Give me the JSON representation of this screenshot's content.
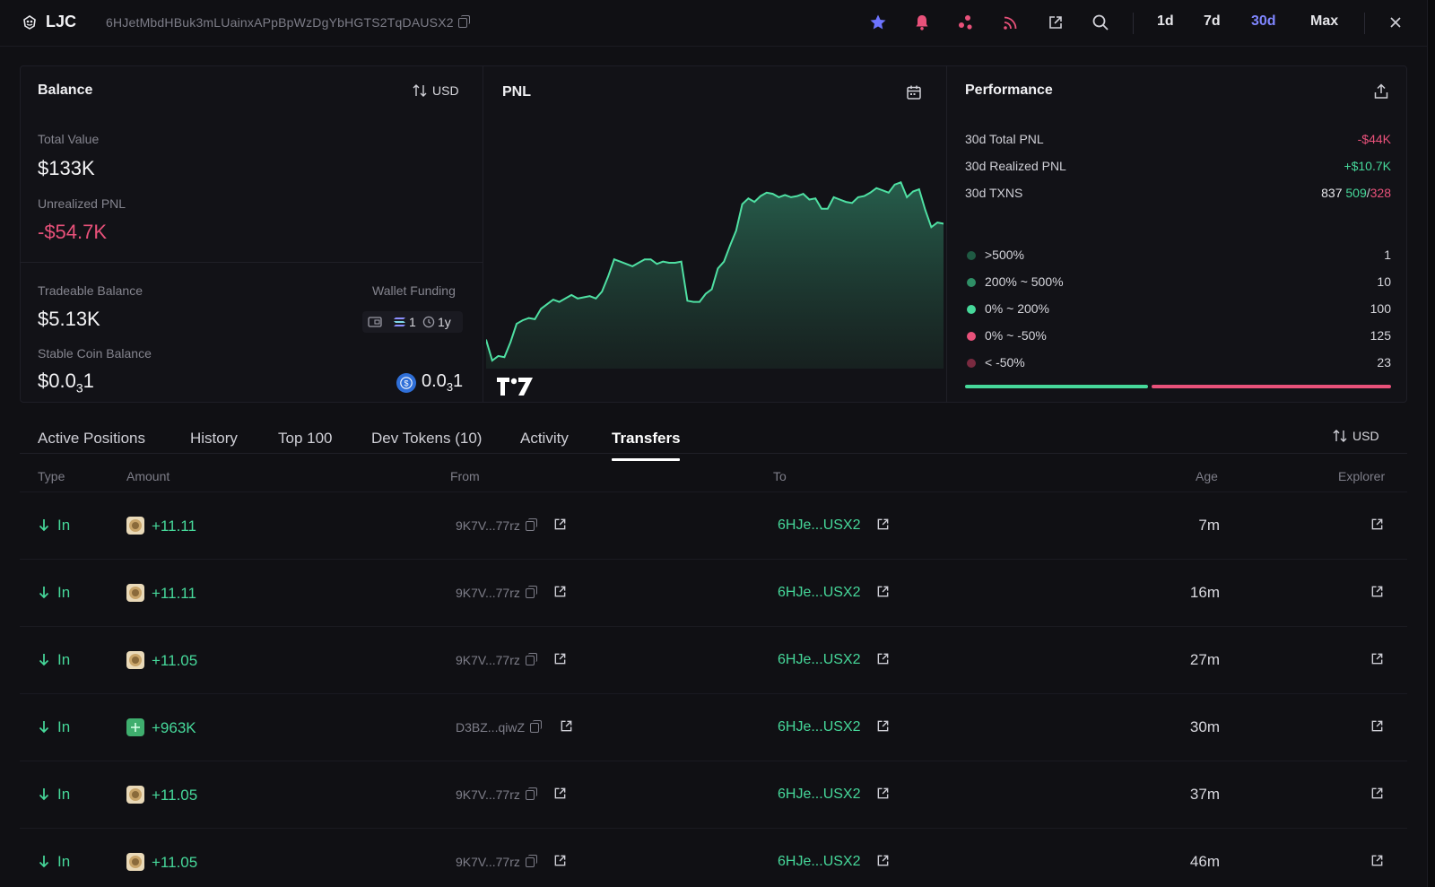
{
  "header": {
    "token_name": "LJC",
    "address": "6HJetMbdHBuk3mLUainxAPpBpWzDgYbHGTS2TqDAUSX2",
    "ranges": [
      "1d",
      "7d",
      "30d",
      "Max"
    ],
    "active_range": "30d"
  },
  "balance": {
    "title": "Balance",
    "currency": "USD",
    "total_value_label": "Total Value",
    "total_value": "$133K",
    "unrealized_label": "Unrealized PNL",
    "unrealized_value": "-$54.7K",
    "tradeable_label": "Tradeable Balance",
    "tradeable_value": "$5.13K",
    "wallet_funding_label": "Wallet Funding",
    "funding_count": "1",
    "funding_age": "1y",
    "stable_label": "Stable Coin Balance",
    "stable_value_main": "$0.0",
    "stable_value_sub": "3",
    "stable_value_tail": "1",
    "stable_right_main": "0.0",
    "stable_right_sub": "3",
    "stable_right_tail": "1"
  },
  "pnl": {
    "title": "PNL"
  },
  "chart_data": {
    "type": "area",
    "title": "PNL",
    "xlabel": "",
    "ylabel": "",
    "grid": false,
    "color": "#4fe0a3",
    "x": [
      0,
      1,
      2,
      3,
      4,
      5,
      6,
      7,
      8,
      9,
      10,
      11,
      12,
      13,
      14,
      15,
      16,
      17,
      18,
      19,
      20,
      21,
      22,
      23,
      24,
      25,
      26,
      27,
      28,
      29,
      30,
      31,
      32,
      33,
      34,
      35,
      36,
      37,
      38,
      39,
      40,
      41,
      42,
      43,
      44,
      45,
      46,
      47,
      48,
      49,
      50,
      51,
      52,
      53,
      54,
      55,
      56,
      57,
      58,
      59,
      60,
      61,
      62,
      63,
      64,
      65,
      66,
      67,
      68,
      69,
      70,
      71,
      72,
      73,
      74,
      75
    ],
    "values": [
      0,
      -18,
      -14,
      -15,
      -2,
      14,
      17,
      19,
      18,
      27,
      31,
      35,
      33,
      36,
      39,
      36,
      37,
      38,
      36,
      42,
      55,
      70,
      68,
      66,
      64,
      67,
      70,
      70,
      66,
      68,
      67,
      67,
      68,
      34,
      33,
      33,
      40,
      44,
      62,
      68,
      82,
      95,
      118,
      123,
      120,
      125,
      128,
      127,
      124,
      126,
      124,
      125,
      127,
      122,
      123,
      114,
      114,
      124,
      122,
      120,
      119,
      124,
      125,
      128,
      132,
      130,
      128,
      135,
      137,
      124,
      129,
      131,
      113,
      98,
      102,
      101
    ],
    "ylim": [
      -25,
      145
    ]
  },
  "performance": {
    "title": "Performance",
    "total_pnl_label": "30d Total PNL",
    "total_pnl_value": "-$44K",
    "realized_pnl_label": "30d Realized PNL",
    "realized_pnl_value": "+$10.7K",
    "txns_label": "30d TXNS",
    "txns_total": "837",
    "txns_buy": "509",
    "txns_sep": "/",
    "txns_sell": "328",
    "distribution": [
      {
        "label": ">500%",
        "count": "1",
        "color": "#1f5a43"
      },
      {
        "label": "200% ~ 500%",
        "count": "10",
        "color": "#2f8f66"
      },
      {
        "label": "0% ~ 200%",
        "count": "100",
        "color": "#46d89a"
      },
      {
        "label": "0% ~ -50%",
        "count": "125",
        "color": "#e8517a"
      },
      {
        "label": "< -50%",
        "count": "23",
        "color": "#7a2a40"
      }
    ],
    "win_ratio": 0.43
  },
  "tabs": [
    "Active Positions",
    "History",
    "Top 100",
    "Dev Tokens (10)",
    "Activity",
    "Transfers"
  ],
  "active_tab": "Transfers",
  "table_currency": "USD",
  "columns": {
    "type": "Type",
    "amount": "Amount",
    "from": "From",
    "to": "To",
    "age": "Age",
    "explorer": "Explorer"
  },
  "rows": [
    {
      "type": "In",
      "amount": "+11.11",
      "from": "9K7V...77rz",
      "to": "6HJe...USX2",
      "age": "7m",
      "token": "coin"
    },
    {
      "type": "In",
      "amount": "+11.11",
      "from": "9K7V...77rz",
      "to": "6HJe...USX2",
      "age": "16m",
      "token": "coin"
    },
    {
      "type": "In",
      "amount": "+11.05",
      "from": "9K7V...77rz",
      "to": "6HJe...USX2",
      "age": "27m",
      "token": "coin"
    },
    {
      "type": "In",
      "amount": "+963K",
      "from": "D3BZ...qiwZ",
      "to": "6HJe...USX2",
      "age": "30m",
      "token": "plus"
    },
    {
      "type": "In",
      "amount": "+11.05",
      "from": "9K7V...77rz",
      "to": "6HJe...USX2",
      "age": "37m",
      "token": "coin"
    },
    {
      "type": "In",
      "amount": "+11.05",
      "from": "9K7V...77rz",
      "to": "6HJe...USX2",
      "age": "46m",
      "token": "coin"
    }
  ]
}
